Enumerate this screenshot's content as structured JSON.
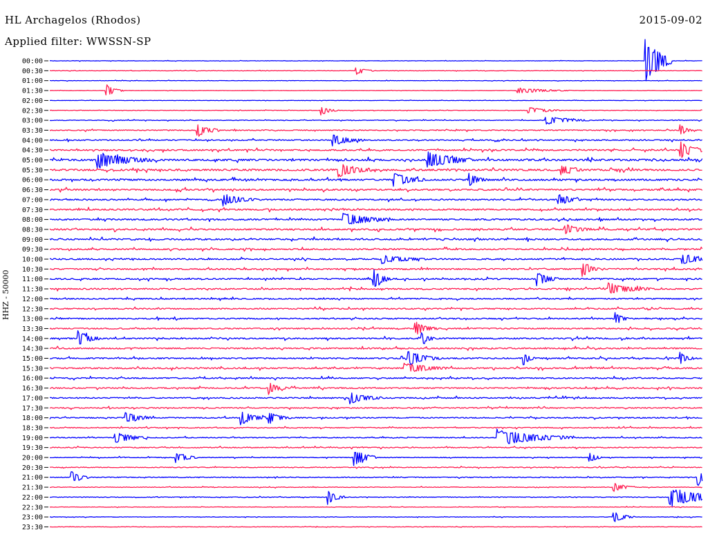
{
  "header": {
    "station": "HL Archagelos (Rhodos)",
    "filter": "Applied filter: WWSSN-SP",
    "date": "2015-09-02",
    "channel_label": "HHZ - 50000"
  },
  "chart_data": {
    "type": "line",
    "title": "HL Archagelos (Rhodos)",
    "subtitle": "Applied filter: WWSSN-SP",
    "date": "2015-09-02",
    "ylabel": "HHZ - 50000",
    "trace_colors": [
      "#0000ff",
      "#ff1a4f"
    ],
    "grid": false,
    "rows": [
      "00:00",
      "00:30",
      "01:00",
      "01:30",
      "02:00",
      "02:30",
      "03:00",
      "03:30",
      "04:00",
      "04:30",
      "05:00",
      "05:30",
      "06:00",
      "06:30",
      "07:00",
      "07:30",
      "08:00",
      "08:30",
      "09:00",
      "09:30",
      "10:00",
      "10:30",
      "11:00",
      "11:30",
      "12:00",
      "12:30",
      "13:00",
      "13:30",
      "14:00",
      "14:30",
      "15:00",
      "15:30",
      "16:00",
      "16:30",
      "17:00",
      "17:30",
      "18:00",
      "18:30",
      "19:00",
      "19:30",
      "20:00",
      "20:30",
      "21:00",
      "21:30",
      "22:00",
      "22:30",
      "23:00",
      "23:30"
    ],
    "noise_level": [
      0.12,
      0.12,
      0.12,
      0.1,
      0.1,
      0.15,
      0.2,
      0.3,
      0.35,
      0.45,
      0.6,
      0.6,
      0.55,
      0.5,
      0.45,
      0.5,
      0.5,
      0.5,
      0.5,
      0.45,
      0.45,
      0.45,
      0.45,
      0.45,
      0.4,
      0.4,
      0.4,
      0.4,
      0.45,
      0.45,
      0.45,
      0.45,
      0.4,
      0.4,
      0.4,
      0.35,
      0.35,
      0.3,
      0.3,
      0.3,
      0.25,
      0.25,
      0.25,
      0.2,
      0.2,
      0.15,
      0.15,
      0.12
    ],
    "events": [
      {
        "row": 0,
        "minute": 27.4,
        "amplitude": 40,
        "duration": 1.2
      },
      {
        "row": 1,
        "minute": 14.1,
        "amplitude": 6,
        "duration": 0.8
      },
      {
        "row": 3,
        "minute": 2.6,
        "amplitude": 9,
        "duration": 0.8
      },
      {
        "row": 3,
        "minute": 21.5,
        "amplitude": 4,
        "duration": 2.5
      },
      {
        "row": 5,
        "minute": 12.5,
        "amplitude": 6,
        "duration": 0.8
      },
      {
        "row": 5,
        "minute": 22.0,
        "amplitude": 5,
        "duration": 1.5
      },
      {
        "row": 6,
        "minute": 22.8,
        "amplitude": 6,
        "duration": 2.0
      },
      {
        "row": 7,
        "minute": 6.8,
        "amplitude": 10,
        "duration": 1.0
      },
      {
        "row": 7,
        "minute": 29.0,
        "amplitude": 8,
        "duration": 0.5
      },
      {
        "row": 8,
        "minute": 13.0,
        "amplitude": 8,
        "duration": 1.5
      },
      {
        "row": 9,
        "minute": 29.0,
        "amplitude": 12,
        "duration": 1.2
      },
      {
        "row": 10,
        "minute": 2.2,
        "amplitude": 12,
        "duration": 2.5
      },
      {
        "row": 10,
        "minute": 17.4,
        "amplitude": 14,
        "duration": 2.0
      },
      {
        "row": 11,
        "minute": 13.3,
        "amplitude": 10,
        "duration": 1.5
      },
      {
        "row": 11,
        "minute": 23.5,
        "amplitude": 7,
        "duration": 1.0
      },
      {
        "row": 12,
        "minute": 15.8,
        "amplitude": 10,
        "duration": 1.5
      },
      {
        "row": 12,
        "minute": 19.3,
        "amplitude": 9,
        "duration": 0.8
      },
      {
        "row": 14,
        "minute": 8.0,
        "amplitude": 8,
        "duration": 1.5
      },
      {
        "row": 14,
        "minute": 23.4,
        "amplitude": 8,
        "duration": 1.0
      },
      {
        "row": 16,
        "minute": 13.5,
        "amplitude": 10,
        "duration": 2.0
      },
      {
        "row": 17,
        "minute": 23.7,
        "amplitude": 7,
        "duration": 1.2
      },
      {
        "row": 20,
        "minute": 15.3,
        "amplitude": 6,
        "duration": 2.0
      },
      {
        "row": 20,
        "minute": 29.1,
        "amplitude": 10,
        "duration": 1.0
      },
      {
        "row": 21,
        "minute": 24.5,
        "amplitude": 10,
        "duration": 0.8
      },
      {
        "row": 22,
        "minute": 14.9,
        "amplitude": 14,
        "duration": 0.8
      },
      {
        "row": 22,
        "minute": 22.4,
        "amplitude": 10,
        "duration": 1.0
      },
      {
        "row": 23,
        "minute": 25.7,
        "amplitude": 8,
        "duration": 2.0
      },
      {
        "row": 26,
        "minute": 26.0,
        "amplitude": 9,
        "duration": 0.6
      },
      {
        "row": 27,
        "minute": 16.8,
        "amplitude": 10,
        "duration": 1.0
      },
      {
        "row": 28,
        "minute": 1.3,
        "amplitude": 12,
        "duration": 1.0
      },
      {
        "row": 28,
        "minute": 17.1,
        "amplitude": 9,
        "duration": 0.6
      },
      {
        "row": 30,
        "minute": 16.5,
        "amplitude": 10,
        "duration": 1.5
      },
      {
        "row": 30,
        "minute": 21.8,
        "amplitude": 10,
        "duration": 0.5
      },
      {
        "row": 30,
        "minute": 29.0,
        "amplitude": 8,
        "duration": 0.6
      },
      {
        "row": 31,
        "minute": 16.3,
        "amplitude": 8,
        "duration": 2.0
      },
      {
        "row": 33,
        "minute": 10.1,
        "amplitude": 8,
        "duration": 0.8
      },
      {
        "row": 34,
        "minute": 13.8,
        "amplitude": 8,
        "duration": 1.5
      },
      {
        "row": 36,
        "minute": 3.5,
        "amplitude": 8,
        "duration": 1.2
      },
      {
        "row": 36,
        "minute": 8.8,
        "amplitude": 10,
        "duration": 1.2
      },
      {
        "row": 36,
        "minute": 10.1,
        "amplitude": 8,
        "duration": 1.0
      },
      {
        "row": 38,
        "minute": 20.6,
        "amplitude": 12,
        "duration": 3.5
      },
      {
        "row": 38,
        "minute": 3.0,
        "amplitude": 8,
        "duration": 1.5
      },
      {
        "row": 40,
        "minute": 14.0,
        "amplitude": 14,
        "duration": 1.0
      },
      {
        "row": 40,
        "minute": 5.8,
        "amplitude": 8,
        "duration": 1.0
      },
      {
        "row": 40,
        "minute": 24.8,
        "amplitude": 8,
        "duration": 0.6
      },
      {
        "row": 42,
        "minute": 1.0,
        "amplitude": 10,
        "duration": 0.8
      },
      {
        "row": 42,
        "minute": 29.8,
        "amplitude": 12,
        "duration": 0.5
      },
      {
        "row": 43,
        "minute": 25.9,
        "amplitude": 7,
        "duration": 1.0
      },
      {
        "row": 44,
        "minute": 12.8,
        "amplitude": 10,
        "duration": 0.8
      },
      {
        "row": 44,
        "minute": 28.5,
        "amplitude": 14,
        "duration": 3.0
      },
      {
        "row": 46,
        "minute": 25.9,
        "amplitude": 8,
        "duration": 1.0
      }
    ]
  }
}
